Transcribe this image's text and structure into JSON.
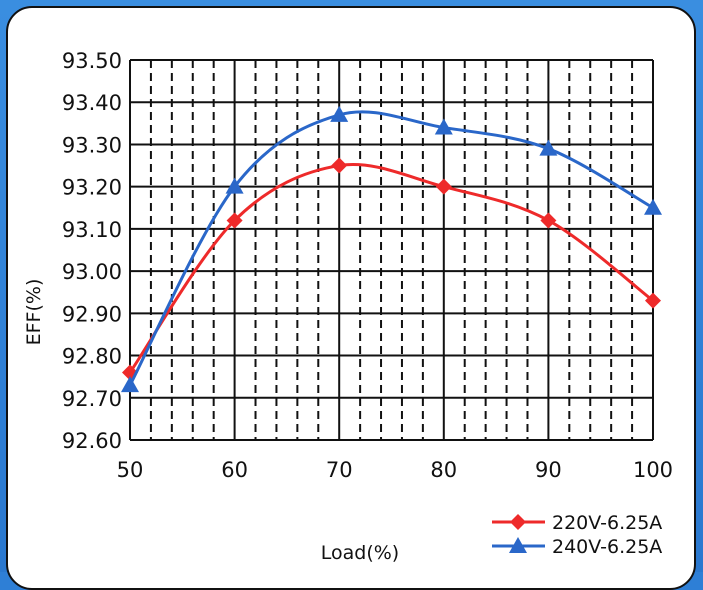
{
  "chart_data": {
    "type": "line",
    "xlabel": "Load(%)",
    "ylabel": "EFF(%)",
    "x": [
      50,
      60,
      70,
      80,
      90,
      100
    ],
    "x_ticks": [
      "50",
      "60",
      "70",
      "80",
      "90",
      "100"
    ],
    "y_ticks": [
      "93.50",
      "93.40",
      "93.30",
      "93.20",
      "93.10",
      "93.00",
      "92.90",
      "92.80",
      "92.70",
      "92.60"
    ],
    "ylim": [
      92.6,
      93.5
    ],
    "xlim": [
      50,
      100
    ],
    "grid": true,
    "legend_position": "bottom-right",
    "series": [
      {
        "name": "220V-6.25A",
        "values": [
          92.76,
          93.12,
          93.25,
          93.2,
          93.12,
          92.93
        ],
        "color": "#ee2a2a",
        "marker": "diamond"
      },
      {
        "name": "240V-6.25A",
        "values": [
          92.73,
          93.2,
          93.37,
          93.34,
          93.29,
          93.15
        ],
        "color": "#2a67c9",
        "marker": "triangle"
      }
    ]
  }
}
